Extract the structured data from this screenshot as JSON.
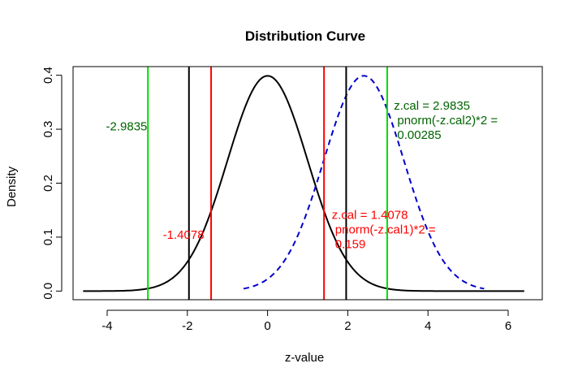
{
  "chart_data": {
    "type": "line",
    "title": "Distribution Curve",
    "xlabel": "z-value",
    "ylabel": "Density",
    "xlim": [
      -4.85,
      6.85
    ],
    "ylim": [
      -0.016,
      0.416
    ],
    "x_ticks": [
      -4,
      -2,
      0,
      2,
      4,
      6
    ],
    "y_ticks": [
      0.0,
      0.1,
      0.2,
      0.3,
      0.4
    ],
    "x_tick_labels": [
      "-4",
      "-2",
      "0",
      "2",
      "4",
      "6"
    ],
    "y_tick_labels": [
      "0.0",
      "0.1",
      "0.2",
      "0.3",
      "0.4"
    ],
    "grid": false,
    "legend": "none",
    "series": [
      {
        "mean": 0,
        "sd": 1,
        "x_range": [
          -4.6,
          6.4
        ],
        "color": "#000000",
        "style": "solid"
      },
      {
        "mean": 2.4,
        "sd": 1,
        "x_range": [
          -0.6,
          5.4
        ],
        "color": "#0000cd",
        "style": "dashed"
      }
    ],
    "vertical_lines": [
      {
        "x": -1.96,
        "color": "#000000"
      },
      {
        "x": 1.96,
        "color": "#000000"
      },
      {
        "x": -1.4078,
        "color": "#ff0000"
      },
      {
        "x": 1.4078,
        "color": "#ff0000"
      },
      {
        "x": -2.9835,
        "color": "#00dd00"
      },
      {
        "x": 2.9835,
        "color": "#00dd00"
      }
    ],
    "annotations": [
      {
        "lines": [
          "-2.9835"
        ],
        "x": -3.0,
        "y": 0.298,
        "color": "#006400",
        "anchor": "end"
      },
      {
        "lines": [
          "z.cal = 2.9835",
          " pnorm(-z.cal2)*2 =",
          " 0.00285"
        ],
        "x": 3.15,
        "y": 0.336,
        "color": "#006400",
        "anchor": "start"
      },
      {
        "lines": [
          "-1.4078"
        ],
        "x": -1.58,
        "y": 0.097,
        "color": "#ff0000",
        "anchor": "end"
      },
      {
        "lines": [
          "z.cal = 1.4078",
          " pnorm(-z.cal1)*2 =",
          " 0.159"
        ],
        "x": 1.6,
        "y": 0.134,
        "color": "#ff0000",
        "anchor": "start"
      }
    ]
  }
}
